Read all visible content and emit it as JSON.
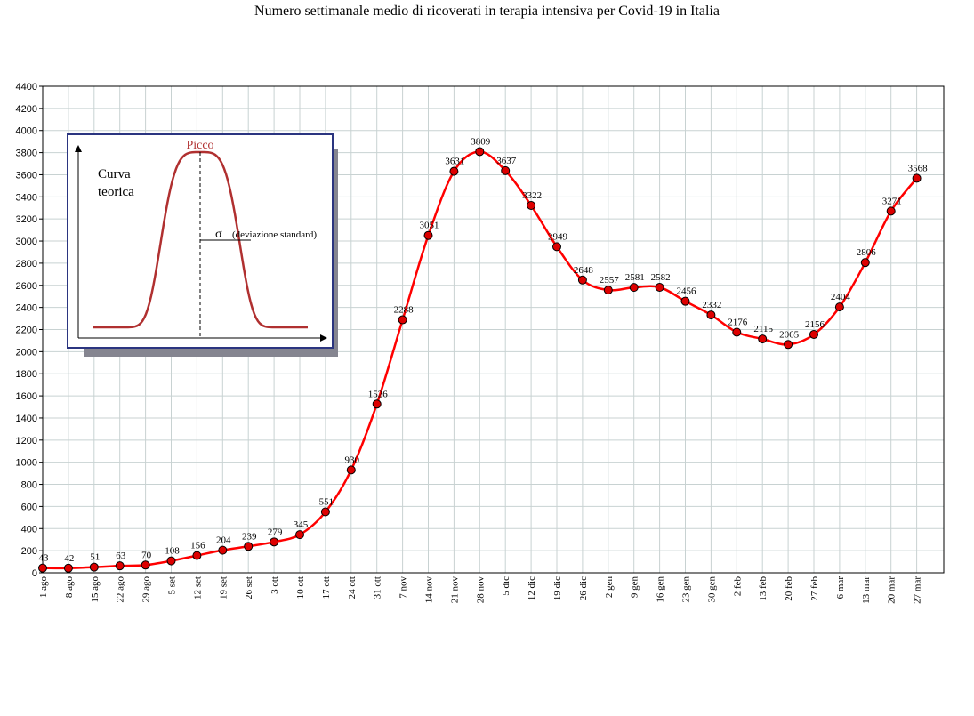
{
  "chart_data": {
    "type": "line",
    "title": "Numero settimanale medio di ricoverati in terapia intensiva per Covid-19 in Italia",
    "xlabel": "",
    "ylabel": "",
    "ylim": [
      0,
      4400
    ],
    "y_ticks": [
      0,
      200,
      400,
      600,
      800,
      1000,
      1200,
      1400,
      1600,
      1800,
      2000,
      2200,
      2400,
      2600,
      2800,
      3000,
      3200,
      3400,
      3600,
      3800,
      4000,
      4200,
      4400
    ],
    "grid": true,
    "categories": [
      "1 ago",
      "8 ago",
      "15 ago",
      "22 ago",
      "29 ago",
      "5 set",
      "12 set",
      "19 set",
      "26 set",
      "3 ott",
      "10 ott",
      "17 ott",
      "24 ott",
      "31 ott",
      "7 nov",
      "14 nov",
      "21 nov",
      "28 nov",
      "5 dic",
      "12 dic",
      "19 dic",
      "26 dic",
      "2 gen",
      "9 gen",
      "16 gen",
      "23 gen",
      "30 gen",
      "2 feb",
      "13 feb",
      "20 feb",
      "27 feb",
      "6 mar",
      "13 mar",
      "20 mar",
      "27 mar"
    ],
    "series": [
      {
        "values": [
          43,
          42,
          51,
          63,
          70,
          108,
          156,
          204,
          239,
          279,
          345,
          551,
          930,
          1526,
          2288,
          3051,
          3631,
          3809,
          3637,
          3322,
          2949,
          2648,
          2557,
          2581,
          2582,
          2456,
          2332,
          2176,
          2115,
          2065,
          2156,
          2404,
          2806,
          3271,
          3568
        ],
        "color": "#ff0000",
        "marker_color": "#dd0000"
      }
    ],
    "inset": {
      "curve_label": [
        "Curva",
        "teorica"
      ],
      "peak_label": "Picco",
      "sigma_symbol": "σ",
      "sigma_label": "(deviazione standard)",
      "border_color": "#2b3580",
      "curve_color": "#b03030"
    }
  }
}
